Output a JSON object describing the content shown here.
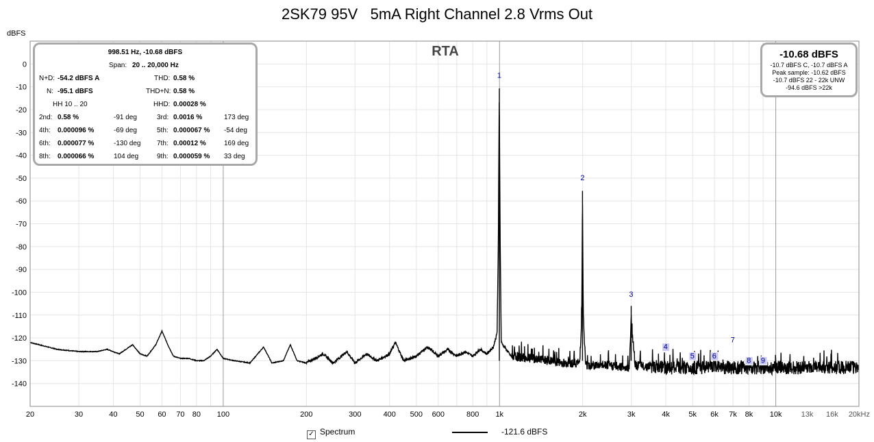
{
  "title": "2SK79 95V   5mA Right Channel 2.8 Vrms Out",
  "ylabel": "dBFS",
  "rta_label": "RTA",
  "legend": {
    "checkbox_mark": "✓",
    "label": "Spectrum",
    "level": "-121.6 dBFS"
  },
  "stats": {
    "header": "998.51 Hz, -10.68 dBFS",
    "span_label": "Span:",
    "span_value": "20 .. 20,000 Hz",
    "rows": [
      {
        "l1": "N+D:",
        "v1": "-54.2 dBFS A",
        "p1": "",
        "l2": "THD:",
        "v2": "0.58 %",
        "p2": ""
      },
      {
        "l1": "N:",
        "v1": "-95.1 dBFS",
        "p1": "",
        "l2": "THD+N:",
        "v2": "0.58 %",
        "p2": ""
      },
      {
        "l1": "HH 10 .. 20",
        "v1": "",
        "p1": "",
        "l2": "HHD:",
        "v2": "0.00028 %",
        "p2": ""
      },
      {
        "l1": "2nd:",
        "v1": "0.58 %",
        "p1": "-91 deg",
        "l2": "3rd:",
        "v2": "0.0016 %",
        "p2": "173 deg"
      },
      {
        "l1": "4th:",
        "v1": "0.000096 %",
        "p1": "-69 deg",
        "l2": "5th:",
        "v2": "0.000067 %",
        "p2": "-54 deg"
      },
      {
        "l1": "6th:",
        "v1": "0.000077 %",
        "p1": "-130 deg",
        "l2": "7th:",
        "v2": "0.00012 %",
        "p2": "169 deg"
      },
      {
        "l1": "8th:",
        "v1": "0.000066 %",
        "p1": "104 deg",
        "l2": "9th:",
        "v2": "0.000059 %",
        "p2": "33 deg"
      }
    ]
  },
  "peak": {
    "value": "-10.68 dBFS",
    "lines": [
      "-10.7 dBFS C, -10.7 dBFS A",
      "Peak sample: -10.62 dBFS",
      "-10.7 dBFS 22 - 22k UNW",
      "-94.6 dBFS >22k"
    ]
  },
  "colors": {
    "trace": "#000000",
    "grid_minor": "#e4e4e4",
    "grid_major": "#c8c8c8",
    "marker_box": "#c8c8f0",
    "marker_text": "#000080"
  },
  "chart_data": {
    "type": "line",
    "x_scale": "log",
    "xlim": [
      20,
      20000
    ],
    "ylim": [
      -150,
      10
    ],
    "y_ticks": [
      0,
      -10,
      -20,
      -30,
      -40,
      -50,
      -60,
      -70,
      -80,
      -90,
      -100,
      -110,
      -120,
      -130,
      -140
    ],
    "x_ticks": [
      {
        "v": 20,
        "label": "20"
      },
      {
        "v": 30,
        "label": "30"
      },
      {
        "v": 40,
        "label": "40"
      },
      {
        "v": 50,
        "label": "50"
      },
      {
        "v": 60,
        "label": "60"
      },
      {
        "v": 70,
        "label": "70"
      },
      {
        "v": 80,
        "label": "80"
      },
      {
        "v": 100,
        "label": "100"
      },
      {
        "v": 200,
        "label": "200"
      },
      {
        "v": 300,
        "label": "300"
      },
      {
        "v": 400,
        "label": "400"
      },
      {
        "v": 500,
        "label": "500"
      },
      {
        "v": 600,
        "label": "600"
      },
      {
        "v": 800,
        "label": "800"
      },
      {
        "v": 1000,
        "label": "1k"
      },
      {
        "v": 2000,
        "label": "2k"
      },
      {
        "v": 3000,
        "label": "3k"
      },
      {
        "v": 4000,
        "label": "4k"
      },
      {
        "v": 5000,
        "label": "5k"
      },
      {
        "v": 6000,
        "label": "6k"
      },
      {
        "v": 7000,
        "label": "7k"
      },
      {
        "v": 8000,
        "label": "8k"
      },
      {
        "v": 10000,
        "label": "10k"
      },
      {
        "v": 13000,
        "label": "13k"
      },
      {
        "v": 16000,
        "label": "16k"
      },
      {
        "v": 20000,
        "label": "20kHz"
      }
    ],
    "series": [
      {
        "points": [
          [
            20,
            -122
          ],
          [
            25,
            -125
          ],
          [
            30,
            -126
          ],
          [
            35,
            -126
          ],
          [
            38,
            -125
          ],
          [
            42,
            -127
          ],
          [
            47,
            -123
          ],
          [
            50,
            -127
          ],
          [
            53,
            -128
          ],
          [
            57,
            -123
          ],
          [
            60,
            -117
          ],
          [
            63,
            -123
          ],
          [
            66,
            -128
          ],
          [
            70,
            -129
          ],
          [
            75,
            -129
          ],
          [
            80,
            -130
          ],
          [
            85,
            -130
          ],
          [
            90,
            -128
          ],
          [
            95,
            -125
          ],
          [
            100,
            -129
          ],
          [
            110,
            -130
          ],
          [
            125,
            -131
          ],
          [
            140,
            -124
          ],
          [
            150,
            -131
          ],
          [
            165,
            -130
          ],
          [
            175,
            -123
          ],
          [
            185,
            -130
          ],
          [
            200,
            -131
          ],
          [
            230,
            -127
          ],
          [
            250,
            -131
          ],
          [
            280,
            -126
          ],
          [
            300,
            -131
          ],
          [
            330,
            -127
          ],
          [
            360,
            -130
          ],
          [
            400,
            -127
          ],
          [
            420,
            -122
          ],
          [
            450,
            -130
          ],
          [
            500,
            -128
          ],
          [
            550,
            -124
          ],
          [
            600,
            -128
          ],
          [
            650,
            -125
          ],
          [
            700,
            -128
          ],
          [
            750,
            -126
          ],
          [
            800,
            -128
          ],
          [
            850,
            -125
          ],
          [
            900,
            -127
          ],
          [
            950,
            -124
          ],
          [
            980,
            -118
          ],
          [
            990,
            -80
          ],
          [
            998,
            -10.7
          ],
          [
            1006,
            -80
          ],
          [
            1015,
            -122
          ],
          [
            1100,
            -128
          ],
          [
            1300,
            -129
          ],
          [
            1500,
            -130
          ],
          [
            1700,
            -131
          ],
          [
            1950,
            -131
          ],
          [
            1985,
            -110
          ],
          [
            1997,
            -55.6
          ],
          [
            2010,
            -110
          ],
          [
            2050,
            -132
          ],
          [
            2500,
            -132
          ],
          [
            2950,
            -133
          ],
          [
            2990,
            -115
          ],
          [
            2996,
            -106
          ],
          [
            3005,
            -115
          ],
          [
            3100,
            -132
          ],
          [
            4000,
            -133
          ],
          [
            5000,
            -133
          ],
          [
            6000,
            -133
          ],
          [
            8000,
            -133
          ],
          [
            10000,
            -133
          ],
          [
            13000,
            -133
          ],
          [
            16000,
            -133
          ],
          [
            20000,
            -133
          ]
        ]
      }
    ],
    "harmonic_markers": [
      {
        "label": "1",
        "x": 998.5,
        "y": -6
      },
      {
        "label": "2",
        "x": 1997,
        "y": -51
      },
      {
        "label": "3",
        "x": 2996,
        "y": -102
      },
      {
        "label": "4",
        "x": 3990,
        "y": -125,
        "boxed": true
      },
      {
        "label": "5",
        "x": 4990,
        "y": -129,
        "boxed": true
      },
      {
        "label": "6",
        "x": 5990,
        "y": -129,
        "boxed": true
      },
      {
        "label": "7",
        "x": 6990,
        "y": -122
      },
      {
        "label": "8",
        "x": 7990,
        "y": -131,
        "boxed": true
      },
      {
        "label": "9",
        "x": 8990,
        "y": -131,
        "boxed": true
      }
    ]
  }
}
